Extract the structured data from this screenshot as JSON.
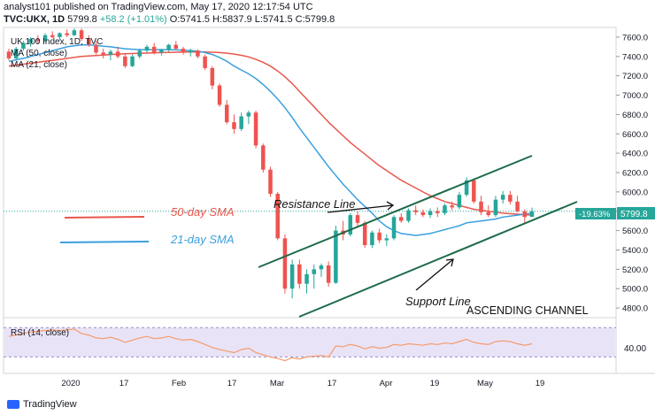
{
  "header": {
    "line1": "analyst101 published on TradingView.com, May 17, 2020 12:17:54 UTC",
    "ticker": "TVC:UKX, 1D",
    "last": "5799.8",
    "change": "+58.2 (+1.01%)",
    "ohlc": "O:5741.5 H:5837.9 L:5741.5 C:5799.8"
  },
  "legend": {
    "title": "UK 100 Index, 1D, TVC",
    "ma50": "MA (50, close)",
    "ma21": "MA (21, close)"
  },
  "colors": {
    "up": "#26a69a",
    "down": "#ef5350",
    "ma50": "#e8574d",
    "ma21": "#3aa0de",
    "channel": "#1e6b4a",
    "rsi": "#f59b6b",
    "rsi_band": "#e9e3f7",
    "price_tag": "#26a69a"
  },
  "chart_data": {
    "type": "candlestick",
    "y_ticks": [
      "7600.0",
      "7400.0",
      "7200.0",
      "7000.0",
      "6800.0",
      "6600.0",
      "6400.0",
      "6200.0",
      "6000.0",
      "5800.0",
      "5600.0",
      "5400.0",
      "5200.0",
      "5000.0",
      "4800.0"
    ],
    "x_labels": [
      "2020",
      "17",
      "Feb",
      "17",
      "Mar",
      "17",
      "Apr",
      "19",
      "May",
      "19"
    ],
    "ylim": [
      4700,
      7700
    ],
    "current_price_label": "5799.8",
    "percent_label": "-19.63%",
    "annotations": {
      "sma50": "50-day SMA",
      "sma21": "21-day SMA",
      "resistance": "Resistance Line",
      "support": "Support Line",
      "channel": "ASCENDING CHANNEL"
    },
    "ohlc": [
      [
        7450,
        7480,
        7360,
        7380
      ],
      [
        7380,
        7500,
        7370,
        7480
      ],
      [
        7480,
        7560,
        7460,
        7540
      ],
      [
        7540,
        7600,
        7500,
        7580
      ],
      [
        7580,
        7620,
        7530,
        7560
      ],
      [
        7560,
        7640,
        7550,
        7620
      ],
      [
        7620,
        7660,
        7590,
        7600
      ],
      [
        7600,
        7650,
        7570,
        7640
      ],
      [
        7640,
        7680,
        7600,
        7620
      ],
      [
        7620,
        7690,
        7610,
        7670
      ],
      [
        7670,
        7690,
        7560,
        7580
      ],
      [
        7580,
        7620,
        7500,
        7520
      ],
      [
        7520,
        7560,
        7420,
        7440
      ],
      [
        7440,
        7480,
        7380,
        7420
      ],
      [
        7420,
        7470,
        7360,
        7450
      ],
      [
        7450,
        7500,
        7380,
        7400
      ],
      [
        7400,
        7420,
        7280,
        7300
      ],
      [
        7300,
        7420,
        7290,
        7400
      ],
      [
        7400,
        7480,
        7380,
        7460
      ],
      [
        7460,
        7520,
        7440,
        7500
      ],
      [
        7500,
        7540,
        7420,
        7440
      ],
      [
        7440,
        7480,
        7410,
        7470
      ],
      [
        7470,
        7530,
        7450,
        7520
      ],
      [
        7520,
        7560,
        7470,
        7480
      ],
      [
        7480,
        7500,
        7420,
        7440
      ],
      [
        7440,
        7480,
        7400,
        7460
      ],
      [
        7460,
        7470,
        7380,
        7400
      ],
      [
        7400,
        7420,
        7260,
        7280
      ],
      [
        7280,
        7300,
        7060,
        7100
      ],
      [
        7100,
        7120,
        6880,
        6900
      ],
      [
        6900,
        6950,
        6700,
        6720
      ],
      [
        6720,
        6800,
        6600,
        6650
      ],
      [
        6650,
        6820,
        6630,
        6780
      ],
      [
        6780,
        6840,
        6700,
        6820
      ],
      [
        6820,
        6840,
        6450,
        6480
      ],
      [
        6480,
        6500,
        6200,
        6230
      ],
      [
        6230,
        6260,
        5950,
        5980
      ],
      [
        5980,
        6000,
        5500,
        5520
      ],
      [
        5520,
        5560,
        4950,
        5000
      ],
      [
        5000,
        5300,
        4900,
        5250
      ],
      [
        5250,
        5300,
        5000,
        5050
      ],
      [
        5050,
        5200,
        4950,
        5150
      ],
      [
        5150,
        5250,
        5000,
        5200
      ],
      [
        5200,
        5260,
        5120,
        5240
      ],
      [
        5240,
        5280,
        5020,
        5060
      ],
      [
        5060,
        5650,
        5050,
        5600
      ],
      [
        5600,
        5700,
        5500,
        5560
      ],
      [
        5560,
        5780,
        5540,
        5760
      ],
      [
        5760,
        5800,
        5640,
        5680
      ],
      [
        5680,
        5700,
        5420,
        5450
      ],
      [
        5450,
        5600,
        5420,
        5580
      ],
      [
        5580,
        5620,
        5470,
        5500
      ],
      [
        5500,
        5560,
        5440,
        5520
      ],
      [
        5520,
        5760,
        5500,
        5740
      ],
      [
        5740,
        5780,
        5680,
        5700
      ],
      [
        5700,
        5830,
        5680,
        5810
      ],
      [
        5810,
        5860,
        5760,
        5790
      ],
      [
        5790,
        5820,
        5740,
        5760
      ],
      [
        5760,
        5830,
        5730,
        5800
      ],
      [
        5800,
        5840,
        5740,
        5780
      ],
      [
        5780,
        5880,
        5760,
        5860
      ],
      [
        5860,
        5900,
        5810,
        5840
      ],
      [
        5840,
        6000,
        5820,
        5970
      ],
      [
        5970,
        6150,
        5950,
        6120
      ],
      [
        6120,
        6140,
        5880,
        5900
      ],
      [
        5900,
        5960,
        5760,
        5790
      ],
      [
        5790,
        5860,
        5740,
        5760
      ],
      [
        5760,
        5960,
        5740,
        5920
      ],
      [
        5920,
        6010,
        5880,
        5970
      ],
      [
        5970,
        6010,
        5870,
        5900
      ],
      [
        5900,
        5960,
        5790,
        5800
      ],
      [
        5800,
        5820,
        5680,
        5740
      ],
      [
        5741.5,
        5837.9,
        5741.5,
        5799.8
      ]
    ],
    "ma21": [
      7350,
      7365,
      7380,
      7400,
      7420,
      7440,
      7460,
      7480,
      7500,
      7510,
      7520,
      7520,
      7515,
      7505,
      7500,
      7490,
      7480,
      7475,
      7470,
      7470,
      7470,
      7470,
      7470,
      7468,
      7465,
      7460,
      7455,
      7440,
      7420,
      7390,
      7350,
      7300,
      7260,
      7220,
      7170,
      7110,
      7040,
      6960,
      6870,
      6770,
      6660,
      6560,
      6460,
      6360,
      6260,
      6170,
      6080,
      6000,
      5920,
      5850,
      5780,
      5700,
      5640,
      5600,
      5570,
      5560,
      5550,
      5560,
      5570,
      5590,
      5610,
      5630,
      5650,
      5680,
      5690,
      5700,
      5710,
      5720,
      5740,
      5750,
      5760,
      5770,
      5780
    ],
    "ma50": [
      7300,
      7310,
      7320,
      7330,
      7340,
      7350,
      7360,
      7370,
      7380,
      7390,
      7400,
      7405,
      7410,
      7415,
      7420,
      7425,
      7428,
      7430,
      7432,
      7435,
      7438,
      7440,
      7442,
      7444,
      7445,
      7446,
      7447,
      7446,
      7444,
      7440,
      7434,
      7425,
      7412,
      7395,
      7370,
      7340,
      7300,
      7250,
      7190,
      7120,
      7040,
      6960,
      6880,
      6800,
      6720,
      6650,
      6580,
      6510,
      6450,
      6390,
      6330,
      6270,
      6220,
      6170,
      6120,
      6080,
      6040,
      6000,
      5960,
      5930,
      5900,
      5880,
      5860,
      5840,
      5820,
      5810,
      5800,
      5790,
      5780,
      5775,
      5770,
      5765,
      5760
    ],
    "rsi": [
      58,
      60,
      62,
      64,
      65,
      66,
      67,
      66,
      67,
      68,
      62,
      60,
      56,
      55,
      57,
      54,
      50,
      53,
      56,
      58,
      55,
      56,
      58,
      55,
      53,
      54,
      51,
      47,
      43,
      40,
      38,
      36,
      40,
      42,
      36,
      33,
      30,
      28,
      25,
      29,
      27,
      30,
      31,
      32,
      30,
      45,
      44,
      47,
      45,
      41,
      44,
      42,
      43,
      47,
      46,
      48,
      47,
      46,
      48,
      47,
      49,
      48,
      51,
      54,
      50,
      48,
      47,
      51,
      52,
      51,
      48,
      46,
      48
    ],
    "rsi_band": [
      30,
      70
    ],
    "rsi_label": "RSI (14, close)",
    "rsi_tick": "40.00"
  },
  "watermark": "TradingView"
}
